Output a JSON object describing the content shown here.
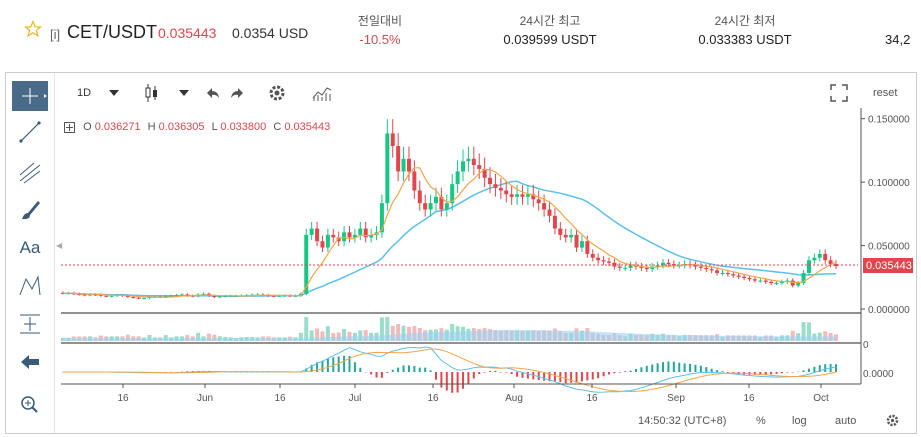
{
  "header": {
    "tag": "[i]",
    "pair": "CET/USDT",
    "price_usdt": "0.035443",
    "price_usd": "0.0354 USD",
    "change_label": "전일대비",
    "change_value": "-10.5%",
    "high_label": "24시간 최고",
    "high_value": "0.039599 USDT",
    "low_label": "24시간 최저",
    "low_value": "0.033383 USDT",
    "cut_value": "34,2"
  },
  "toolbar": {
    "interval": "1D",
    "reset": "reset"
  },
  "ohlc": {
    "o_label": "O",
    "o_value": "0.036271",
    "h_label": "H",
    "h_value": "0.036305",
    "l_label": "L",
    "l_value": "0.033800",
    "c_label": "C",
    "c_value": "0.035443"
  },
  "axis": {
    "y_ticks": [
      "0.150000",
      "0.100000",
      "0.050000",
      "0.000000"
    ],
    "current_price": "0.035443",
    "volume_tick": "0",
    "macd_tick": "0.0000",
    "x_ticks": [
      "16",
      "Jun",
      "16",
      "Jul",
      "16",
      "Aug",
      "16",
      "Sep",
      "16",
      "Oct"
    ]
  },
  "footer": {
    "time": "14:50:32",
    "tz": "(UTC+8)",
    "pct": "%",
    "log": "log",
    "auto": "auto"
  },
  "colors": {
    "up": "#26a69a",
    "up_bright": "#16c784",
    "down": "#e0474c",
    "ma_fast": "#f5a54a",
    "ma_slow": "#5bc0eb",
    "tool_active": "#4a6a8a"
  },
  "chart_data": {
    "type": "line",
    "title": "",
    "x_range": [
      "2019-05-05",
      "2019-10-03"
    ],
    "ylim": [
      0,
      0.16
    ],
    "close": [
      0.014,
      0.014,
      0.0135,
      0.013,
      0.0125,
      0.013,
      0.0128,
      0.012,
      0.0115,
      0.012,
      0.0125,
      0.012,
      0.011,
      0.0105,
      0.01,
      0.0102,
      0.011,
      0.0112,
      0.011,
      0.0118,
      0.012,
      0.0125,
      0.013,
      0.012,
      0.0115,
      0.013,
      0.0135,
      0.012,
      0.011,
      0.0115,
      0.0118,
      0.012,
      0.012,
      0.0122,
      0.0125,
      0.0128,
      0.013,
      0.0125,
      0.012,
      0.0118,
      0.012,
      0.0122,
      0.0118,
      0.012,
      0.0135,
      0.06,
      0.065,
      0.055,
      0.05,
      0.06,
      0.058,
      0.055,
      0.062,
      0.058,
      0.06,
      0.065,
      0.058,
      0.06,
      0.062,
      0.085,
      0.14,
      0.13,
      0.11,
      0.12,
      0.11,
      0.095,
      0.085,
      0.08,
      0.085,
      0.09,
      0.08,
      0.085,
      0.1,
      0.11,
      0.118,
      0.12,
      0.115,
      0.112,
      0.105,
      0.1,
      0.097,
      0.095,
      0.092,
      0.09,
      0.092,
      0.09,
      0.092,
      0.088,
      0.085,
      0.08,
      0.075,
      0.065,
      0.06,
      0.058,
      0.06,
      0.05,
      0.055,
      0.045,
      0.042,
      0.04,
      0.039,
      0.038,
      0.035,
      0.034,
      0.034,
      0.036,
      0.035,
      0.034,
      0.033,
      0.035,
      0.036,
      0.038,
      0.037,
      0.036,
      0.036,
      0.037,
      0.036,
      0.035,
      0.034,
      0.033,
      0.032,
      0.03,
      0.03,
      0.029,
      0.028,
      0.027,
      0.026,
      0.025,
      0.024,
      0.024,
      0.023,
      0.022,
      0.022,
      0.023,
      0.024,
      0.02,
      0.022,
      0.03,
      0.04,
      0.042,
      0.045,
      0.04,
      0.037,
      0.0354
    ]
  }
}
